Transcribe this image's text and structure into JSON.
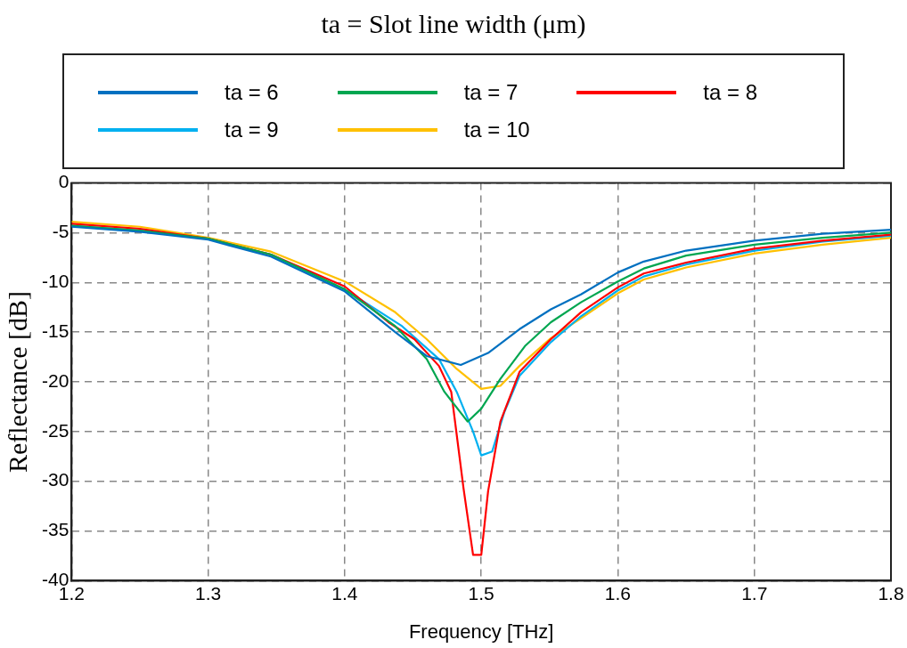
{
  "chart_data": {
    "type": "line",
    "title": "ta = Slot line width (μm)",
    "xlabel": "Frequency [THz]",
    "ylabel": "Reflectance [dB]",
    "xlim": [
      1.2,
      1.8
    ],
    "xticks": [
      1.2,
      1.3,
      1.4,
      1.5,
      1.6,
      1.7,
      1.8
    ],
    "ylim": [
      -40,
      0
    ],
    "yticks": [
      -40,
      -35,
      -30,
      -25,
      -20,
      -15,
      -10,
      -5,
      0
    ],
    "grid": true,
    "legend": "top",
    "marker": "none",
    "line_style": "solid",
    "series": [
      {
        "name": "ta = 6",
        "color": "#0070c0",
        "x": [
          1.2,
          1.25,
          1.3,
          1.346,
          1.4,
          1.437,
          1.46,
          1.485,
          1.505,
          1.528,
          1.551,
          1.573,
          1.6,
          1.619,
          1.65,
          1.7,
          1.75,
          1.8
        ],
        "values": [
          -4.4,
          -4.9,
          -5.7,
          -7.4,
          -10.9,
          -15,
          -17.4,
          -18.3,
          -17.1,
          -14.7,
          -12.7,
          -11.2,
          -9.0,
          -7.9,
          -6.8,
          -5.8,
          -5.1,
          -4.7
        ]
      },
      {
        "name": "ta = 7",
        "color": "#00a650",
        "x": [
          1.2,
          1.25,
          1.3,
          1.346,
          1.4,
          1.437,
          1.46,
          1.473,
          1.49,
          1.5,
          1.514,
          1.532,
          1.551,
          1.573,
          1.6,
          1.619,
          1.65,
          1.7,
          1.75,
          1.8
        ],
        "values": [
          -4.3,
          -4.8,
          -5.6,
          -7.2,
          -10.7,
          -14.4,
          -17.7,
          -21,
          -24,
          -22.7,
          -19.7,
          -16.4,
          -14,
          -12,
          -9.9,
          -8.6,
          -7.3,
          -6.2,
          -5.5,
          -5.0
        ]
      },
      {
        "name": "ta = 8",
        "color": "#ff0000",
        "x": [
          1.2,
          1.25,
          1.3,
          1.346,
          1.4,
          1.432,
          1.451,
          1.469,
          1.478,
          1.487,
          1.494,
          1.5,
          1.505,
          1.514,
          1.528,
          1.551,
          1.573,
          1.6,
          1.619,
          1.65,
          1.7,
          1.75,
          1.8
        ],
        "values": [
          -4.1,
          -4.6,
          -5.6,
          -7.2,
          -10.4,
          -14,
          -15.7,
          -18.4,
          -21,
          -30.7,
          -37.4,
          -37.4,
          -31,
          -24,
          -19,
          -15.7,
          -13,
          -10.5,
          -9.1,
          -8,
          -6.6,
          -5.8,
          -5.2
        ]
      },
      {
        "name": "ta = 9",
        "color": "#00b0f0",
        "x": [
          1.2,
          1.25,
          1.3,
          1.346,
          1.4,
          1.442,
          1.469,
          1.482,
          1.494,
          1.5,
          1.508,
          1.517,
          1.528,
          1.551,
          1.573,
          1.6,
          1.619,
          1.65,
          1.7,
          1.75,
          1.8
        ],
        "values": [
          -4.3,
          -4.8,
          -5.6,
          -7.2,
          -10.7,
          -14.4,
          -17.7,
          -21,
          -25,
          -27.4,
          -27,
          -23,
          -19.4,
          -16,
          -13.4,
          -10.8,
          -9.4,
          -8.2,
          -6.8,
          -5.9,
          -5.3
        ]
      },
      {
        "name": "ta = 10",
        "color": "#ffc000",
        "x": [
          1.2,
          1.25,
          1.3,
          1.346,
          1.4,
          1.437,
          1.46,
          1.482,
          1.5,
          1.514,
          1.528,
          1.551,
          1.573,
          1.6,
          1.619,
          1.65,
          1.7,
          1.75,
          1.8
        ],
        "values": [
          -3.9,
          -4.4,
          -5.5,
          -6.9,
          -9.9,
          -13,
          -15.7,
          -18.7,
          -20.7,
          -20.4,
          -18.4,
          -15.6,
          -13.6,
          -11.1,
          -9.7,
          -8.5,
          -7.1,
          -6.2,
          -5.5
        ]
      }
    ]
  }
}
